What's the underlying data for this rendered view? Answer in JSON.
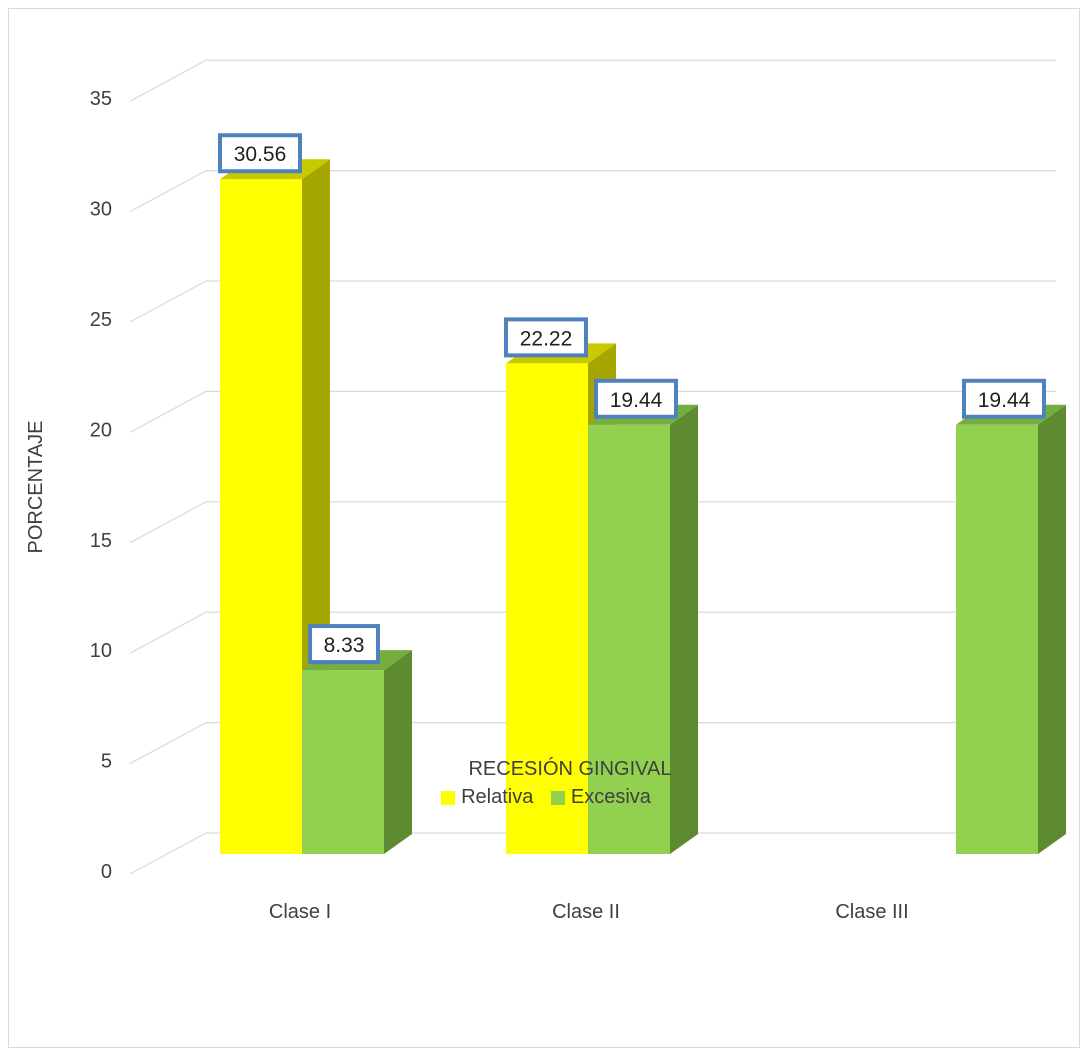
{
  "chart_data": {
    "type": "bar",
    "categories": [
      "Clase I",
      "Clase II",
      "Clase III"
    ],
    "series": [
      {
        "name": "Relativa",
        "values": [
          30.56,
          22.22,
          null
        ],
        "color": "#ffff00",
        "shade": "#a6a600",
        "side": "#c9c900"
      },
      {
        "name": "Excesiva",
        "values": [
          8.33,
          19.44,
          19.44
        ],
        "color": "#92d050",
        "shade": "#5e8b32",
        "side": "#76ad3e"
      }
    ],
    "data_labels": [
      [
        "30.56",
        "22.22",
        ""
      ],
      [
        "8.33",
        "19.44",
        "19.44"
      ]
    ],
    "title": "",
    "xlabel": "RECESIÓN GINGIVAL",
    "ylabel": "PORCENTAJE",
    "ylim": [
      0,
      35
    ],
    "yticks": [
      "0",
      "5",
      "10",
      "15",
      "20",
      "25",
      "30",
      "35"
    ],
    "grid": true,
    "legend_position": "bottom",
    "label_border_color": "#4f81bd",
    "gridline_color": "#d9d9d9"
  }
}
